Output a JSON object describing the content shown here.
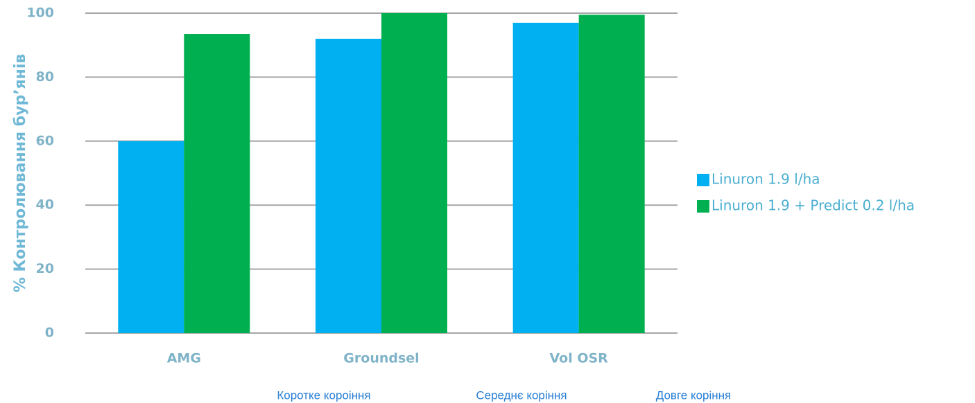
{
  "chart_data": {
    "type": "bar",
    "ylabel": "% Контролювання бур’янів",
    "categories": [
      "AMG",
      "Groundsel",
      "Vol OSR"
    ],
    "series": [
      {
        "name": "Linuron 1.9 l/ha",
        "color": "#00b0f0",
        "values": [
          60,
          92,
          97
        ]
      },
      {
        "name": "Linuron 1.9 + Predict 0.2 l/ha",
        "color": "#00b050",
        "values": [
          93.5,
          100,
          99.5
        ]
      }
    ],
    "ylim": [
      0,
      100
    ],
    "yticks": [
      0,
      20,
      40,
      60,
      80,
      100
    ],
    "grid": true,
    "legend": "right",
    "annotations": [
      "Коротке короіння",
      "Середнє коріння",
      "Довге коріння"
    ]
  }
}
